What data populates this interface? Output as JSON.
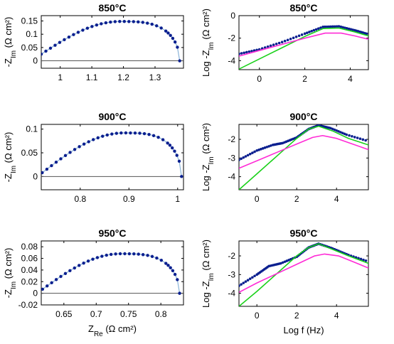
{
  "chart_data": [
    {
      "type": "scatter",
      "title": "850°C",
      "xlabel": "",
      "ylabel": "-Z_Im (Ω cm²)",
      "xlim": [
        0.94,
        1.39
      ],
      "ylim": [
        -0.028,
        0.17
      ],
      "xticks": [
        1,
        1.1,
        1.2,
        1.3
      ],
      "xtick_labels": [
        "1",
        "1.1",
        "1.2",
        "1.3"
      ],
      "yticks": [
        0,
        0.05,
        0.1,
        0.15
      ],
      "ytick_labels": [
        "0",
        "0.05",
        "0.1",
        "0.15"
      ],
      "arc": {
        "x_start": 0.94,
        "x_peak": 1.19,
        "x_end": 1.378,
        "y_start": 0.025,
        "y_peak": 0.148
      },
      "series": [
        {
          "role": "measured",
          "color": "#0a1f8f"
        },
        {
          "role": "fit",
          "color": "#8ab4d8"
        }
      ]
    },
    {
      "type": "line",
      "title": "850°C",
      "xlabel": "",
      "ylabel": "Log -Z_Im (Ω cm²)",
      "xlim": [
        -0.9,
        4.8
      ],
      "ylim": [
        -4.8,
        0
      ],
      "xticks": [
        0,
        2,
        4
      ],
      "xtick_labels": [
        "0",
        "2",
        "4"
      ],
      "yticks": [
        0,
        -2,
        -4
      ],
      "ytick_labels": [
        "0",
        "-2",
        "-4"
      ],
      "series": [
        {
          "role": "measured",
          "color": "#0a1f8f",
          "x": [
            -0.9,
            0,
            1,
            2,
            2.8,
            3.5,
            4.2,
            4.8
          ],
          "y": [
            -3.4,
            -3.0,
            -2.35,
            -1.6,
            -1.0,
            -0.95,
            -1.3,
            -1.65
          ]
        },
        {
          "role": "fit-1",
          "color": "#1ad11a",
          "x": [
            -0.9,
            0,
            1,
            2,
            2.8,
            3.5,
            4.2,
            4.8
          ],
          "y": [
            -4.75,
            -3.85,
            -2.85,
            -1.85,
            -1.15,
            -1.1,
            -1.45,
            -1.8
          ]
        },
        {
          "role": "fit-2",
          "color": "#ff2bd6",
          "x": [
            -0.9,
            0,
            1,
            2,
            2.9,
            3.6,
            4.2,
            4.8
          ],
          "y": [
            -3.6,
            -3.1,
            -2.55,
            -2.0,
            -1.55,
            -1.55,
            -1.8,
            -2.1
          ]
        }
      ]
    },
    {
      "type": "scatter",
      "title": "900°C",
      "xlabel": "",
      "ylabel": "-Z_Im (Ω cm²)",
      "xlim": [
        0.72,
        1.012
      ],
      "ylim": [
        -0.028,
        0.11
      ],
      "xticks": [
        0.8,
        0.9,
        1
      ],
      "xtick_labels": [
        "0.8",
        "0.9",
        "1"
      ],
      "yticks": [
        0,
        0.05,
        0.1
      ],
      "ytick_labels": [
        "0",
        "0.05",
        "0.1"
      ],
      "arc": {
        "x_start": 0.722,
        "x_peak": 0.89,
        "x_end": 1.008,
        "y_start": 0.008,
        "y_peak": 0.092
      },
      "series": [
        {
          "role": "measured",
          "color": "#0a1f8f"
        },
        {
          "role": "fit",
          "color": "#8ab4d8"
        }
      ]
    },
    {
      "type": "line",
      "title": "900°C",
      "xlabel": "",
      "ylabel": "Log -Z_Im (Ω cm²)",
      "xlim": [
        -0.9,
        5.6
      ],
      "ylim": [
        -4.7,
        -1.2
      ],
      "xticks": [
        0,
        2,
        4
      ],
      "xtick_labels": [
        "0",
        "2",
        "4"
      ],
      "yticks": [
        -2,
        -3,
        -4
      ],
      "ytick_labels": [
        "-2",
        "-3",
        "-4"
      ],
      "series": [
        {
          "role": "measured",
          "color": "#0a1f8f",
          "x": [
            -0.9,
            0,
            0.8,
            1.3,
            2,
            2.6,
            3.1,
            3.7,
            4.5,
            5.6
          ],
          "y": [
            -3.1,
            -2.6,
            -2.3,
            -2.2,
            -1.9,
            -1.45,
            -1.25,
            -1.4,
            -1.75,
            -2.1
          ]
        },
        {
          "role": "fit-1",
          "color": "#1ad11a",
          "x": [
            -0.9,
            0,
            1,
            2,
            2.6,
            3.1,
            3.8,
            4.6,
            5.6
          ],
          "y": [
            -4.7,
            -3.85,
            -2.9,
            -1.95,
            -1.45,
            -1.3,
            -1.55,
            -1.95,
            -2.3
          ]
        },
        {
          "role": "fit-2",
          "color": "#ff2bd6",
          "x": [
            -0.9,
            0,
            1,
            2,
            2.8,
            3.3,
            4,
            4.8,
            5.6
          ],
          "y": [
            -3.55,
            -3.15,
            -2.7,
            -2.25,
            -1.9,
            -1.8,
            -1.95,
            -2.25,
            -2.55
          ]
        }
      ]
    },
    {
      "type": "scatter",
      "title": "950°C",
      "xlabel": "Z_Re (Ω cm²)",
      "ylabel": "-Z_Im (Ω cm²)",
      "xlim": [
        0.615,
        0.835
      ],
      "ylim": [
        -0.02,
        0.09
      ],
      "xticks": [
        0.65,
        0.7,
        0.75,
        0.8
      ],
      "xtick_labels": [
        "0.65",
        "0.7",
        "0.75",
        "0.8"
      ],
      "yticks": [
        0.08,
        0.06,
        0.04,
        0.02,
        0,
        -0.02
      ],
      "ytick_labels": [
        "0.08",
        "0.06",
        "0.04",
        "0.02",
        "0",
        "-0.02"
      ],
      "arc": {
        "x_start": 0.617,
        "x_peak": 0.738,
        "x_end": 0.829,
        "y_start": 0.007,
        "y_peak": 0.068
      },
      "series": [
        {
          "role": "measured",
          "color": "#0a1f8f"
        },
        {
          "role": "fit",
          "color": "#8ab4d8"
        }
      ]
    },
    {
      "type": "line",
      "title": "950°C",
      "xlabel": "Log f (Hz)",
      "ylabel": "Log -Z_Im (Ω cm²)",
      "xlim": [
        -0.9,
        5.6
      ],
      "ylim": [
        -4.7,
        -1.2
      ],
      "xticks": [
        0,
        2,
        4
      ],
      "xtick_labels": [
        "0",
        "2",
        "4"
      ],
      "yticks": [
        -2,
        -3,
        -4
      ],
      "ytick_labels": [
        "-2",
        "-3",
        "-4"
      ],
      "series": [
        {
          "role": "measured",
          "color": "#0a1f8f",
          "x": [
            -0.9,
            0,
            0.6,
            1.2,
            2,
            2.6,
            3.1,
            3.8,
            4.6,
            5.6
          ],
          "y": [
            -3.6,
            -3.0,
            -2.55,
            -2.4,
            -2.05,
            -1.55,
            -1.35,
            -1.6,
            -1.95,
            -2.3
          ]
        },
        {
          "role": "fit-1",
          "color": "#1ad11a",
          "x": [
            -0.9,
            0,
            1,
            2,
            2.6,
            3.1,
            3.8,
            4.6,
            5.6
          ],
          "y": [
            -4.7,
            -3.9,
            -2.95,
            -2.0,
            -1.55,
            -1.35,
            -1.65,
            -2.0,
            -2.4
          ]
        },
        {
          "role": "fit-2",
          "color": "#ff2bd6",
          "x": [
            -0.9,
            0,
            1,
            2,
            2.9,
            3.4,
            4.1,
            4.8,
            5.6
          ],
          "y": [
            -3.95,
            -3.45,
            -2.95,
            -2.45,
            -2.0,
            -1.9,
            -2.0,
            -2.3,
            -2.65
          ]
        }
      ]
    }
  ]
}
